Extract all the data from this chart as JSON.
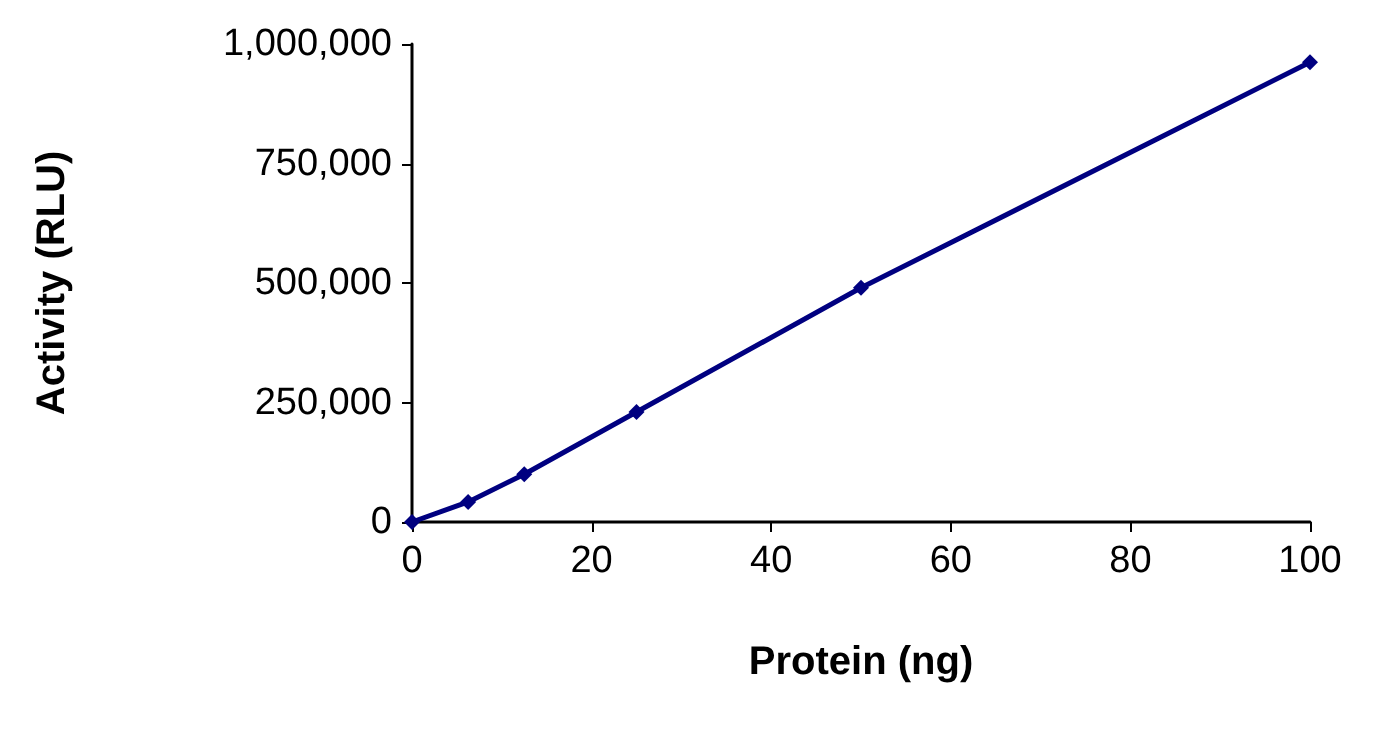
{
  "chart_data": {
    "type": "line",
    "xlabel": "Protein (ng)",
    "ylabel": "Activity (RLU)",
    "x": [
      0,
      6.25,
      12.5,
      25,
      50,
      100
    ],
    "series": [
      {
        "color": "#000080",
        "values": [
          0,
          42000,
          100000,
          230000,
          490000,
          962000
        ]
      }
    ],
    "xlim": [
      0,
      100
    ],
    "xticks": [
      0,
      20,
      40,
      60,
      80,
      100
    ],
    "ylim": [
      0,
      1000000
    ],
    "yticks": [
      {
        "value": 0,
        "label": "0"
      },
      {
        "value": 250000,
        "label": "250,000"
      },
      {
        "value": 500000,
        "label": "500,000"
      },
      {
        "value": 750000,
        "label": "750,000"
      },
      {
        "value": 1000000,
        "label": "1,000,000"
      }
    ],
    "grid": false,
    "marker": "diamond",
    "line_style": "solid"
  }
}
